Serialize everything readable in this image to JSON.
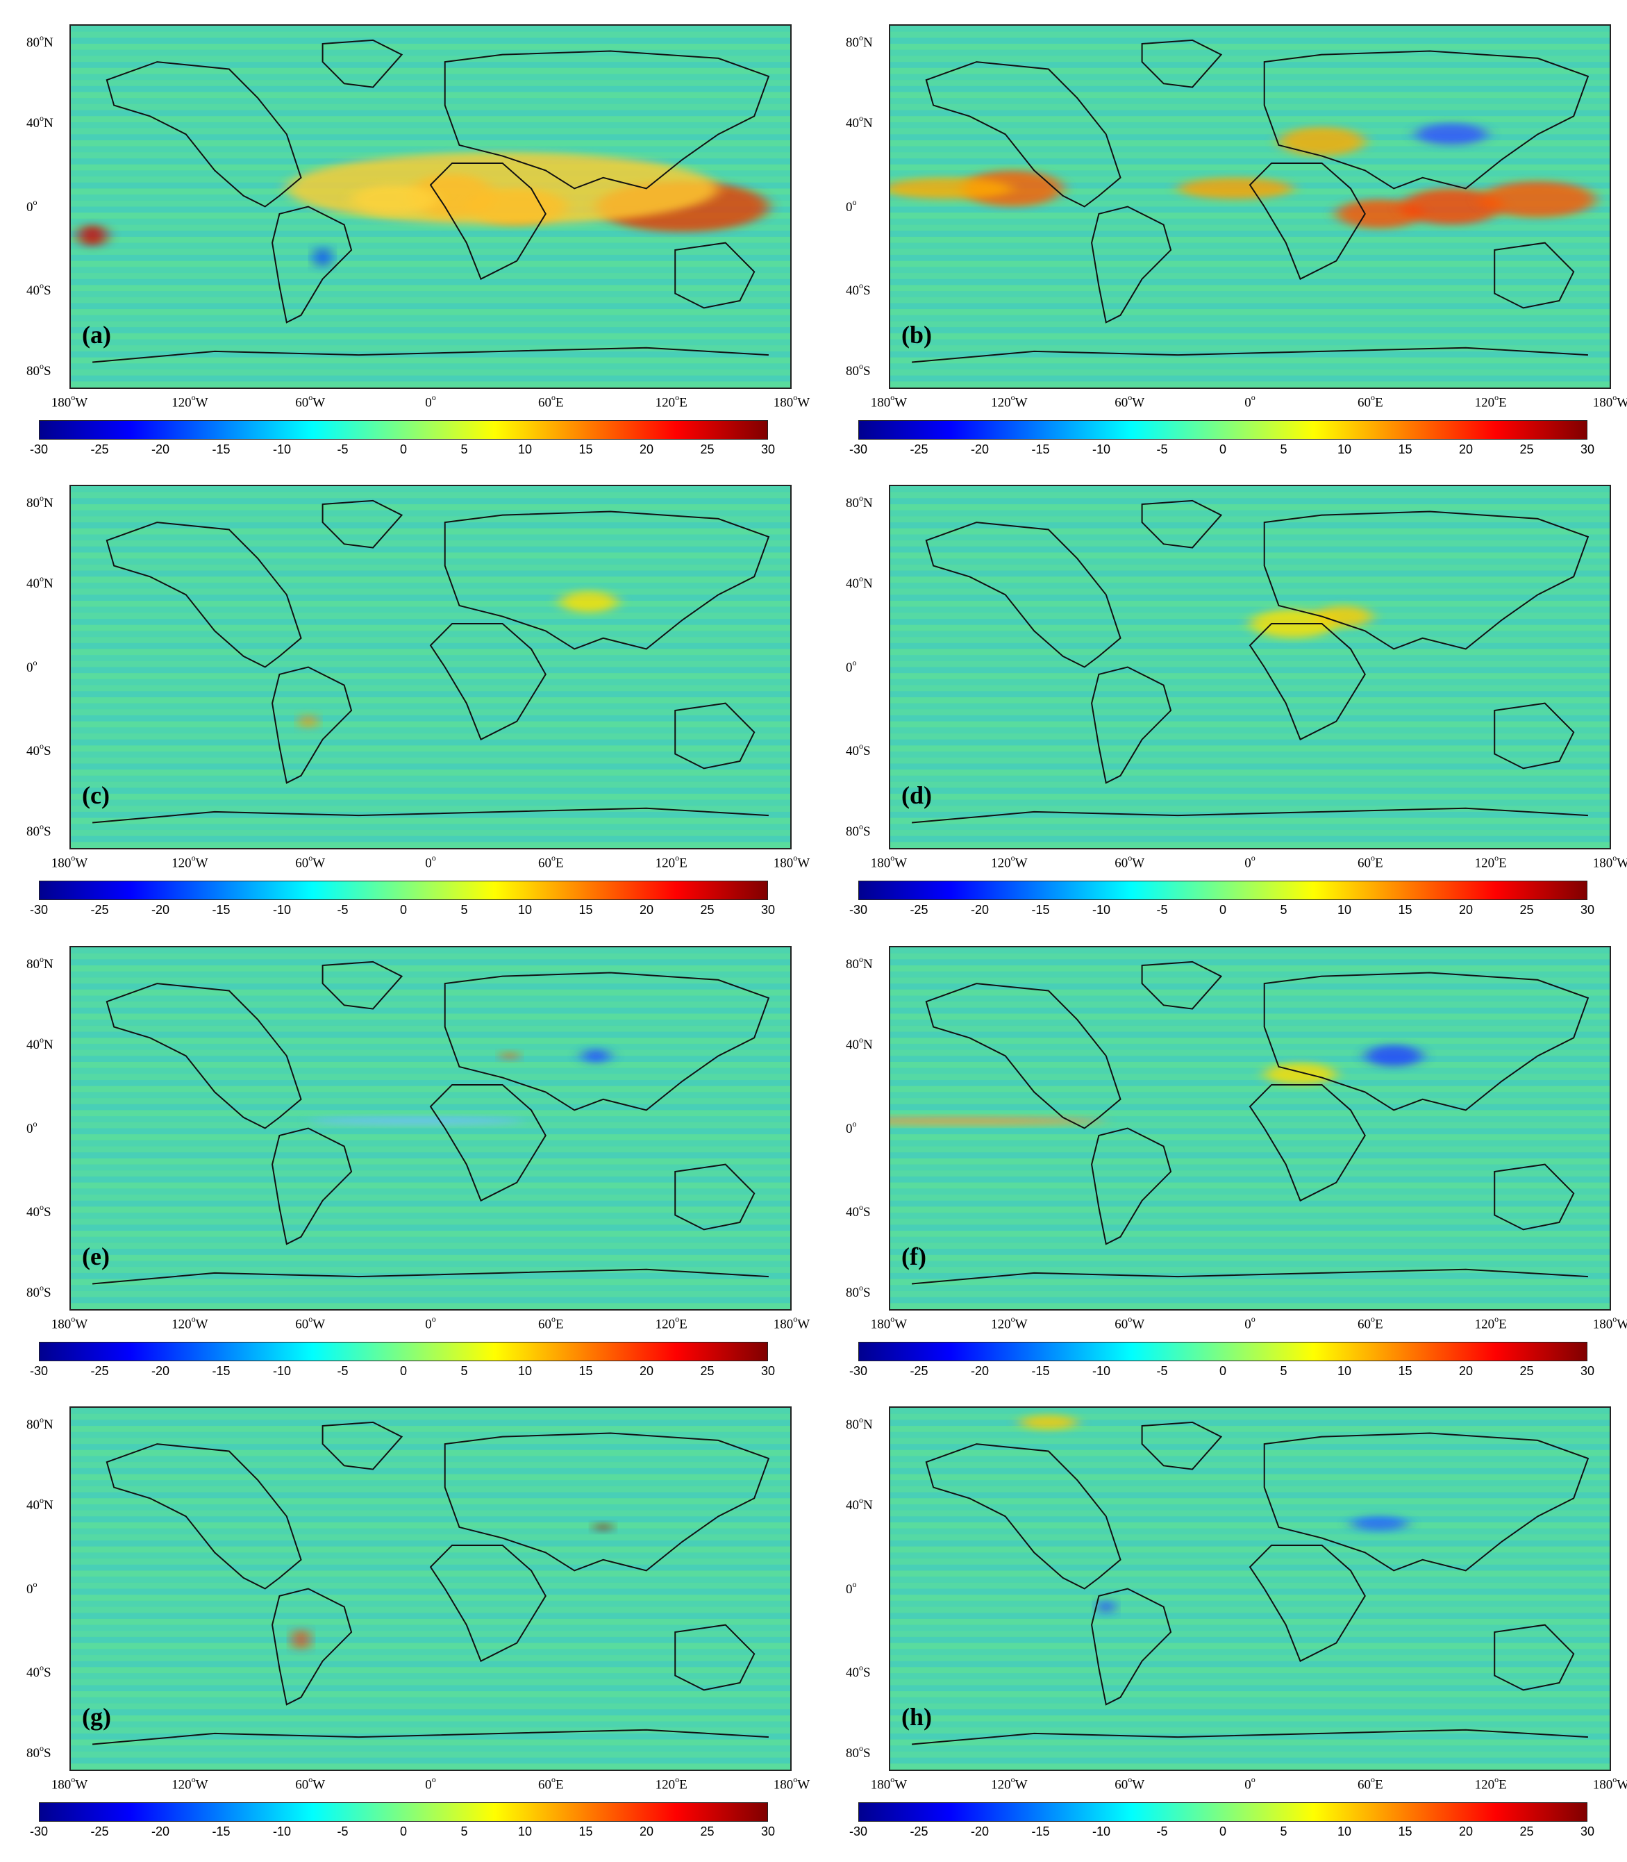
{
  "panels": [
    {
      "label": "(a)"
    },
    {
      "label": "(b)"
    },
    {
      "label": "(c)"
    },
    {
      "label": "(d)"
    },
    {
      "label": "(e)"
    },
    {
      "label": "(f)"
    },
    {
      "label": "(g)"
    },
    {
      "label": "(h)"
    }
  ],
  "axes": {
    "lat_ticks": [
      "80",
      "40",
      "0",
      "40",
      "80"
    ],
    "lat_suffix": [
      "N",
      "N",
      "",
      "S",
      "S"
    ],
    "lon_ticks": [
      "180",
      "120",
      "60",
      "0",
      "60",
      "120",
      "180"
    ],
    "lon_suffix": [
      "W",
      "W",
      "W",
      "",
      "E",
      "E",
      "W"
    ]
  },
  "colorbar": {
    "ticks": [
      "-30",
      "-25",
      "-20",
      "-15",
      "-10",
      "-5",
      "0",
      "5",
      "10",
      "15",
      "20",
      "25",
      "30"
    ],
    "range": [
      -30,
      30
    ],
    "colormap": "jet",
    "colors": [
      "#00008f",
      "#0000ff",
      "#00ffff",
      "#7fff7f",
      "#ffff00",
      "#ff0000",
      "#800000"
    ]
  }
}
